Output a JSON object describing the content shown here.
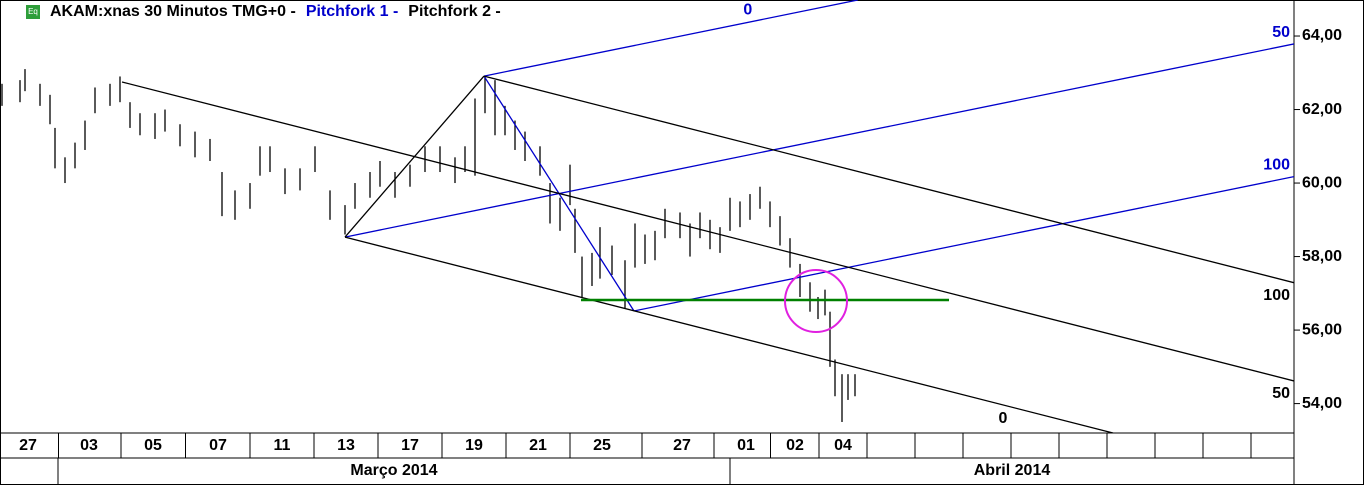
{
  "chart_data": {
    "type": "ohlc",
    "badge": "Eq",
    "title": "AKAM:xnas 30 Minutos TMG+0 -",
    "xlim": [
      0,
      647
    ],
    "ylim": [
      53.2,
      64.98
    ],
    "yticks": [
      {
        "value": 64,
        "label": "64,00"
      },
      {
        "value": 62,
        "label": "62,00"
      },
      {
        "value": 60,
        "label": "60,00"
      },
      {
        "value": 58,
        "label": "58,00"
      },
      {
        "value": 56,
        "label": "56,00"
      },
      {
        "value": 54,
        "label": "54,00"
      }
    ],
    "xticks": [
      {
        "value": 14,
        "label": "27"
      },
      {
        "value": 44.5,
        "label": "03"
      },
      {
        "value": 76.5,
        "label": "05"
      },
      {
        "value": 109,
        "label": "07"
      },
      {
        "value": 141,
        "label": "11"
      },
      {
        "value": 173,
        "label": "13"
      },
      {
        "value": 205,
        "label": "17"
      },
      {
        "value": 237,
        "label": "19"
      },
      {
        "value": 269,
        "label": "21"
      },
      {
        "value": 301,
        "label": "25"
      },
      {
        "value": 341,
        "label": "27"
      },
      {
        "value": 373,
        "label": "01"
      },
      {
        "value": 397.5,
        "label": "02"
      },
      {
        "value": 421.5,
        "label": "04"
      }
    ],
    "periods": [
      {
        "label": "Março 2014",
        "range": [
          29,
          365
        ]
      },
      {
        "label": "Abril 2014",
        "range": [
          365,
          647
        ]
      }
    ],
    "series": [
      {
        "color": "#000000",
        "x": [
          1,
          10,
          12.5,
          20,
          25,
          27.5,
          32.5,
          37.5,
          42.5,
          47.5,
          55,
          60,
          65,
          70,
          77.5,
          82.5,
          90,
          97.5,
          105,
          111,
          117.5,
          125,
          130,
          135,
          142.5,
          150,
          157.5,
          165,
          172.5,
          177.5,
          185,
          190,
          197.5,
          205,
          212.5,
          220,
          227.5,
          232.5,
          237.5,
          242.5,
          247.5,
          252.5,
          257.5,
          262.5,
          270,
          275,
          280,
          285,
          287.5,
          291,
          296,
          300,
          306,
          312.5,
          317.5,
          322.5,
          327.5,
          332.5,
          340,
          345,
          350,
          355,
          360,
          365,
          370,
          375,
          380,
          385,
          390,
          395,
          400,
          405,
          409,
          412.5,
          415,
          417.5,
          421,
          424,
          427.5
        ],
        "high": [
          62.7,
          62.8,
          63.1,
          62.7,
          62.4,
          61.5,
          60.7,
          61.1,
          61.7,
          62.6,
          62.7,
          62.9,
          62.2,
          61.9,
          61.9,
          62.0,
          61.6,
          61.4,
          61.2,
          60.3,
          59.8,
          60.0,
          61.0,
          61.0,
          60.4,
          60.4,
          61.0,
          59.8,
          59.4,
          60.0,
          60.3,
          60.6,
          60.3,
          60.5,
          61.0,
          61.0,
          60.7,
          61.0,
          62.3,
          62.9,
          62.8,
          62.1,
          61.7,
          61.4,
          61.0,
          60.0,
          59.6,
          60.5,
          59.3,
          58.0,
          58.1,
          58.8,
          58.3,
          57.9,
          58.9,
          58.6,
          58.7,
          59.3,
          59.2,
          58.9,
          59.2,
          59.0,
          58.8,
          59.6,
          59.5,
          59.7,
          59.9,
          59.5,
          59.1,
          58.5,
          57.8,
          57.3,
          56.9,
          57.1,
          56.5,
          55.2,
          54.8,
          54.8,
          54.8
        ],
        "low": [
          62.1,
          62.2,
          62.5,
          62.1,
          61.6,
          60.4,
          60.0,
          60.4,
          60.9,
          61.9,
          62.1,
          62.2,
          61.5,
          61.3,
          61.2,
          61.4,
          61.0,
          60.7,
          60.6,
          59.1,
          59.0,
          59.3,
          60.2,
          60.3,
          59.7,
          59.8,
          60.3,
          59.0,
          58.6,
          59.3,
          59.6,
          59.9,
          59.6,
          59.9,
          60.3,
          60.3,
          60.0,
          60.3,
          60.2,
          61.9,
          61.3,
          61.3,
          60.9,
          60.6,
          60.2,
          58.9,
          58.7,
          59.4,
          58.1,
          56.9,
          57.2,
          57.4,
          57.5,
          56.6,
          57.7,
          57.8,
          57.9,
          58.5,
          58.5,
          58.0,
          58.5,
          58.2,
          58.1,
          58.7,
          58.8,
          59.0,
          59.3,
          58.8,
          58.3,
          57.7,
          56.9,
          56.5,
          56.3,
          56.4,
          55.0,
          54.2,
          53.5,
          54.1,
          54.2
        ]
      }
    ],
    "pitchforks": [
      {
        "name": "Pitchfork 1 -",
        "color": "#0000cc",
        "points": [
          [
            172.5,
            58.53
          ],
          [
            242,
            62.91
          ],
          [
            317,
            56.52
          ]
        ],
        "levels": [
          0,
          50,
          100
        ]
      },
      {
        "name": "Pitchfork 2 -",
        "color": "#000000",
        "points": [
          [
            61,
            62.75
          ],
          [
            172.5,
            58.53
          ],
          [
            242,
            62.91
          ]
        ],
        "levels": [
          0,
          50,
          100
        ]
      }
    ],
    "hline": {
      "y": 56.82,
      "x": [
        290.5,
        474.5
      ],
      "color": "#008000"
    }
  }
}
